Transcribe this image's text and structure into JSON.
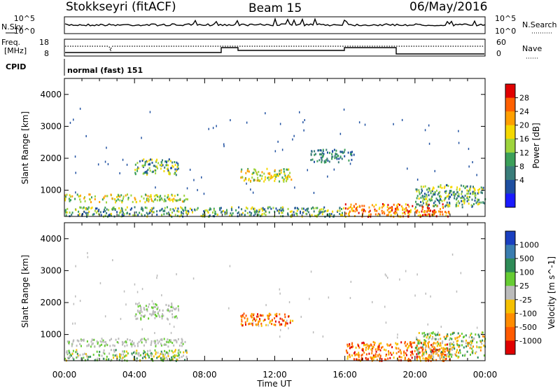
{
  "header": {
    "station": "Stokkseyri (fitACF)",
    "beam": "Beam 15",
    "date": "06/May/2016"
  },
  "noise_panel": {
    "left_label": "N.Sky",
    "right_label": "N.Search",
    "left_ticks": [
      "10^5",
      "10^0"
    ],
    "right_ticks": [
      "10^5",
      "10^0"
    ]
  },
  "freq_panel": {
    "left_label_1": "Freq.",
    "left_label_2": "[MHz]",
    "right_label": "Nave",
    "left_ticks": [
      "18",
      "8"
    ],
    "right_ticks": [
      "60",
      "0"
    ]
  },
  "cpid": {
    "label": "CPID",
    "mode": "normal (fast) 151"
  },
  "x_axis": {
    "label": "Time UT",
    "ticks": [
      "00:00",
      "04:00",
      "08:00",
      "12:00",
      "16:00",
      "20:00",
      "00:00"
    ]
  },
  "power_colorbar": {
    "label": "Power [dB]",
    "ticks": [
      "28",
      "24",
      "20",
      "16",
      "12",
      "8",
      "4"
    ],
    "colors": [
      "#e00000",
      "#ff6000",
      "#ff9f00",
      "#f5d800",
      "#9ed43c",
      "#3ca05a",
      "#3a7d7a",
      "#1e4fa0",
      "#1a1aff"
    ]
  },
  "velocity_colorbar": {
    "label": "Velocity [m s^-1]",
    "ticks": [
      "1000",
      "500",
      "100",
      "25",
      "-25",
      "-100",
      "-500",
      "-1000"
    ],
    "colors": [
      "#1a3fc0",
      "#3a7db0",
      "#2e8b57",
      "#66cc33",
      "#bbbbbb",
      "#f5c000",
      "#ff8c00",
      "#ff5a00",
      "#e00000"
    ]
  },
  "chart_data": [
    {
      "type": "heatmap",
      "title": "Power",
      "ylabel": "Slant Range [km]",
      "xlabel": "Time UT",
      "x_range": [
        "00:00",
        "24:00"
      ],
      "ylim": [
        180,
        4500
      ],
      "y_ticks": [
        1000,
        2000,
        3000,
        4000
      ],
      "regions": [
        {
          "t0": 0.0,
          "t1": 7.0,
          "r0": 650,
          "r1": 900,
          "level": "12-20 dB"
        },
        {
          "t0": 0.0,
          "t1": 16.0,
          "r0": 200,
          "r1": 500,
          "level": "8-20 dB"
        },
        {
          "t0": 4.0,
          "t1": 6.5,
          "r0": 1500,
          "r1": 2000,
          "level": "8-16 dB"
        },
        {
          "t0": 10.0,
          "t1": 13.0,
          "r0": 1300,
          "r1": 1700,
          "level": "12-20 dB"
        },
        {
          "t0": 14.0,
          "t1": 16.5,
          "r0": 1900,
          "r1": 2300,
          "level": "4-12 dB"
        },
        {
          "t0": 16.0,
          "t1": 22.0,
          "r0": 200,
          "r1": 600,
          "level": "20-28 dB"
        },
        {
          "t0": 20.0,
          "t1": 24.0,
          "r0": 500,
          "r1": 1200,
          "level": "8-20 dB"
        }
      ]
    },
    {
      "type": "heatmap",
      "title": "Velocity",
      "ylabel": "Slant Range [km]",
      "xlabel": "Time UT",
      "x_range": [
        "00:00",
        "24:00"
      ],
      "ylim": [
        180,
        4500
      ],
      "y_ticks": [
        1000,
        2000,
        3000,
        4000
      ],
      "regions": [
        {
          "t0": 0.0,
          "t1": 7.0,
          "r0": 650,
          "r1": 900,
          "level": "-25 to 25 m/s"
        },
        {
          "t0": 0.0,
          "t1": 7.0,
          "r0": 200,
          "r1": 550,
          "level": "25 to 500 m/s"
        },
        {
          "t0": 4.0,
          "t1": 6.5,
          "r0": 1500,
          "r1": 2000,
          "level": "-25 to 25 m/s"
        },
        {
          "t0": 10.0,
          "t1": 13.0,
          "r0": 1300,
          "r1": 1700,
          "level": "-100 to -500 m/s"
        },
        {
          "t0": 16.0,
          "t1": 22.0,
          "r0": 200,
          "r1": 800,
          "level": "-100 to -500 m/s"
        },
        {
          "t0": 20.0,
          "t1": 24.0,
          "r0": 300,
          "r1": 1100,
          "level": "mixed"
        }
      ]
    }
  ]
}
